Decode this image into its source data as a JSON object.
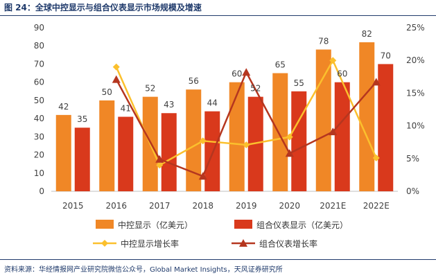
{
  "title": "图 24：全球中控显示与组合仪表显示市场规模及增速",
  "source": "资料来源：华经情报网产业研究院微信公众号，Global Market Insights，天风证券研究所",
  "colors": {
    "bar_center": "#f08726",
    "bar_cluster": "#d9391c",
    "line_center": "#fbc02d",
    "line_cluster": "#b5361f"
  },
  "chart_data": {
    "type": "bar",
    "categories": [
      "2015",
      "2016",
      "2017",
      "2018",
      "2019",
      "2020",
      "2021E",
      "2022E"
    ],
    "series": [
      {
        "name": "中控显示（亿美元）",
        "kind": "bar",
        "axis": "left",
        "values": [
          42,
          50,
          52,
          56,
          60,
          65,
          78,
          82
        ]
      },
      {
        "name": "组合仪表显示（亿美元）",
        "kind": "bar",
        "axis": "left",
        "values": [
          35,
          41,
          43,
          44,
          52,
          55,
          60,
          70
        ]
      },
      {
        "name": "中控显示增长率",
        "kind": "line",
        "axis": "right",
        "values": [
          null,
          0.19,
          0.04,
          0.077,
          0.071,
          0.083,
          0.2,
          0.051
        ]
      },
      {
        "name": "组合仪表增长率",
        "kind": "line",
        "axis": "right",
        "values": [
          null,
          0.171,
          0.049,
          0.023,
          0.182,
          0.058,
          0.091,
          0.167
        ]
      }
    ],
    "left_axis": {
      "ylim": [
        0,
        90
      ],
      "ticks": [
        "0",
        "10",
        "20",
        "30",
        "40",
        "50",
        "60",
        "70",
        "80",
        "90"
      ]
    },
    "right_axis": {
      "ylim": [
        0,
        0.25
      ],
      "ticks": [
        "0%",
        "5%",
        "10%",
        "15%",
        "20%",
        "25%"
      ]
    },
    "legend": [
      "中控显示（亿美元）",
      "组合仪表显示（亿美元）",
      "中控显示增长率",
      "组合仪表增长率"
    ]
  }
}
